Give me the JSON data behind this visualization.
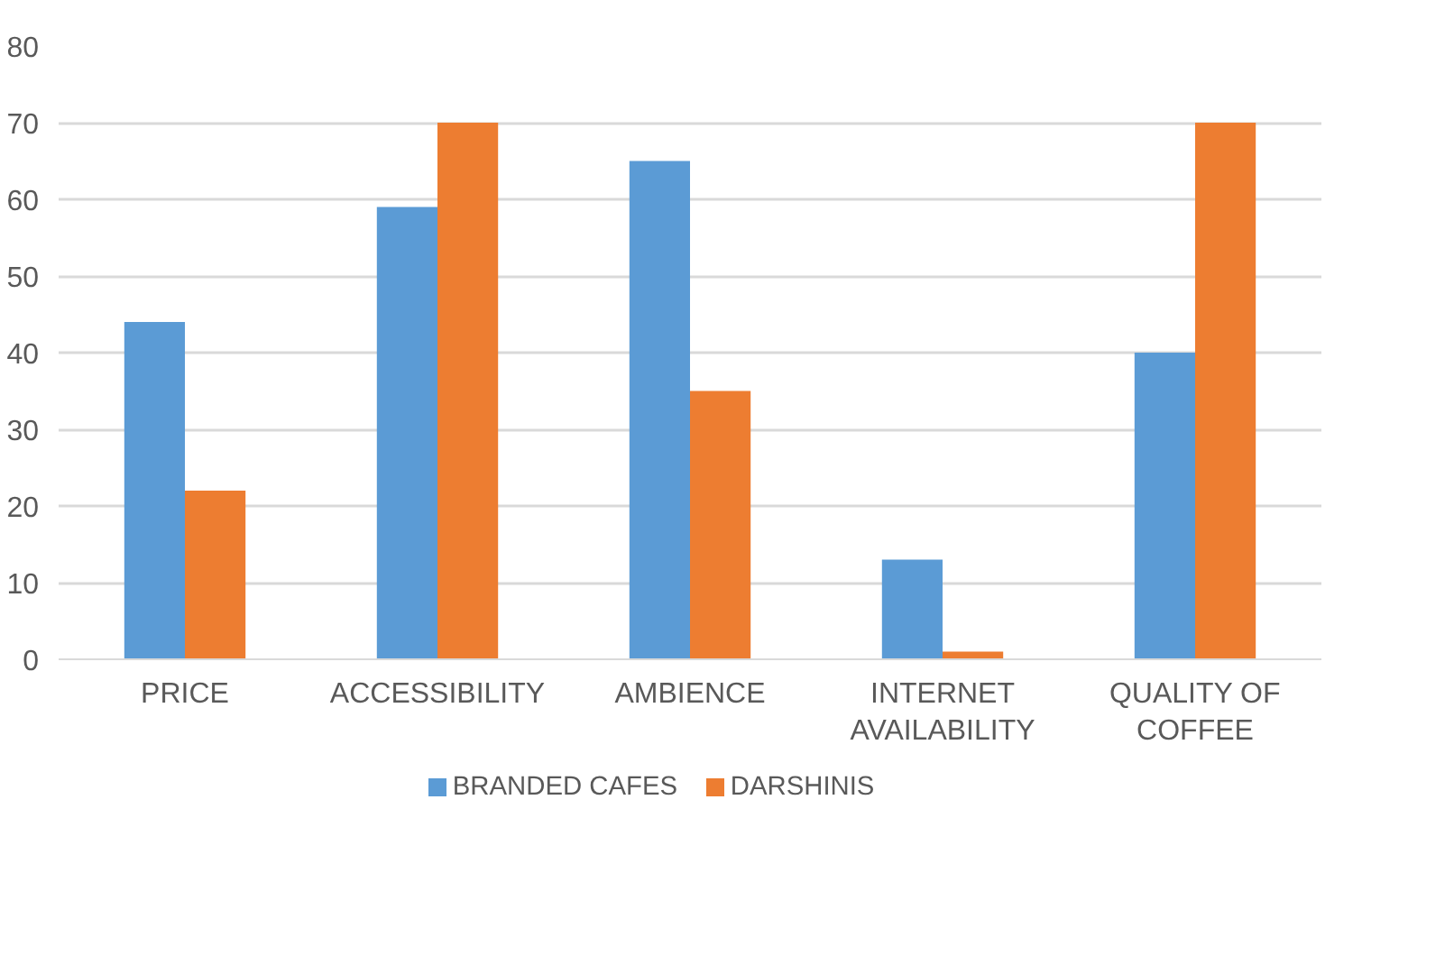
{
  "chart_data": {
    "type": "bar",
    "categories": [
      "PRICE",
      "ACCESSIBILITY",
      "AMBIENCE",
      "INTERNET\nAVAILABILITY",
      "QUALITY OF\nCOFFEE"
    ],
    "series": [
      {
        "name": "BRANDED CAFES",
        "color": "#5b9bd5",
        "values": [
          44,
          59,
          65,
          13,
          40
        ]
      },
      {
        "name": "DARSHINIS",
        "color": "#ed7d31",
        "values": [
          22,
          70,
          35,
          1,
          70
        ]
      }
    ],
    "ylim": [
      0,
      80
    ],
    "yticks": [
      0,
      10,
      20,
      30,
      40,
      50,
      60,
      70,
      80
    ],
    "grid": "y",
    "legend": "bottom"
  }
}
